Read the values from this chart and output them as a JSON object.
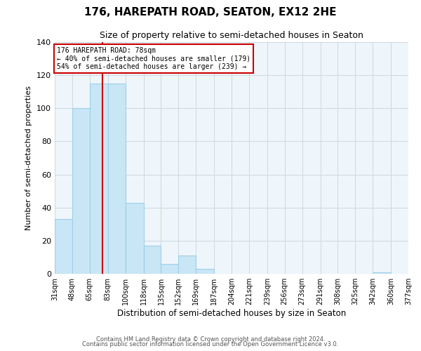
{
  "title": "176, HAREPATH ROAD, SEATON, EX12 2HE",
  "subtitle": "Size of property relative to semi-detached houses in Seaton",
  "xlabel": "Distribution of semi-detached houses by size in Seaton",
  "ylabel": "Number of semi-detached properties",
  "bin_edges": [
    31,
    48,
    65,
    83,
    100,
    118,
    135,
    152,
    169,
    187,
    204,
    221,
    239,
    256,
    273,
    291,
    308,
    325,
    342,
    360,
    377
  ],
  "bar_heights": [
    33,
    100,
    115,
    115,
    43,
    17,
    6,
    11,
    3,
    0,
    0,
    0,
    0,
    0,
    0,
    0,
    0,
    0,
    1,
    0
  ],
  "bar_color": "#c8e6f5",
  "bar_edgecolor": "#a0cfe8",
  "plot_bg_color": "#eef6fc",
  "property_line_x": 78,
  "property_line_color": "#cc0000",
  "annotation_title": "176 HAREPATH ROAD: 78sqm",
  "annotation_line1": "← 40% of semi-detached houses are smaller (179)",
  "annotation_line2": "54% of semi-detached houses are larger (239) →",
  "annotation_box_color": "#ffffff",
  "annotation_box_edgecolor": "#cc0000",
  "ylim": [
    0,
    140
  ],
  "yticks": [
    0,
    20,
    40,
    60,
    80,
    100,
    120,
    140
  ],
  "tick_labels": [
    "31sqm",
    "48sqm",
    "65sqm",
    "83sqm",
    "100sqm",
    "118sqm",
    "135sqm",
    "152sqm",
    "169sqm",
    "187sqm",
    "204sqm",
    "221sqm",
    "239sqm",
    "256sqm",
    "273sqm",
    "291sqm",
    "308sqm",
    "325sqm",
    "342sqm",
    "360sqm",
    "377sqm"
  ],
  "footnote1": "Contains HM Land Registry data © Crown copyright and database right 2024.",
  "footnote2": "Contains public sector information licensed under the Open Government Licence v3.0.",
  "background_color": "#ffffff",
  "grid_color": "#d0d8e0"
}
